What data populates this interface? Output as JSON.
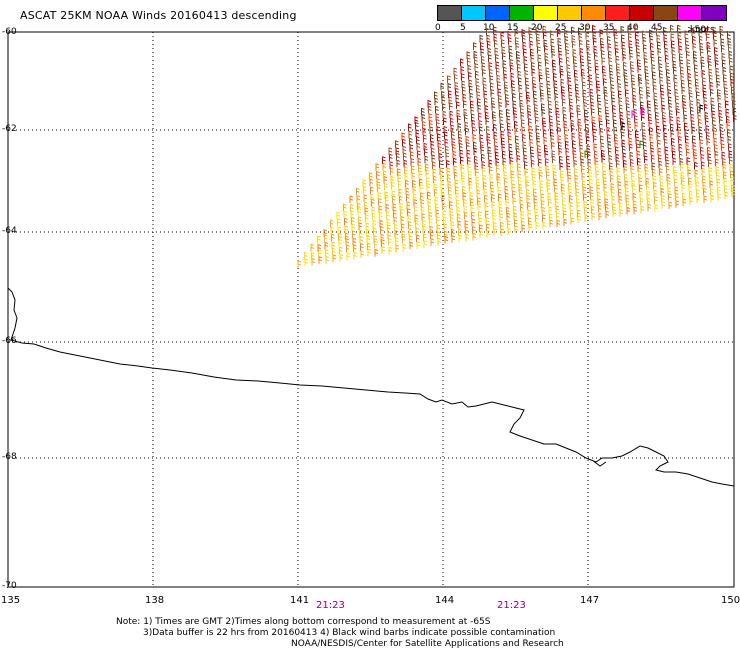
{
  "title": "ASCAT 25KM NOAA Winds 20160413 descending",
  "legend": {
    "colors": [
      "#555555",
      "#00c8ff",
      "#0064ff",
      "#00b400",
      "#ffff00",
      "#ffc800",
      "#ff8c00",
      "#ff1e1e",
      "#c80000",
      "#8b4513",
      "#ff00ff",
      "#8000c0",
      "#4b0082"
    ],
    "labels": [
      "0",
      "5",
      "10",
      "15",
      "20",
      "25",
      "30",
      "35",
      "40",
      "45",
      ">50"
    ],
    "unit": "knots"
  },
  "axes": {
    "latitude_labels": [
      "-60",
      "-62",
      "-64",
      "-66",
      "-68",
      "-70"
    ],
    "longitude_labels": [
      "135",
      "138",
      "141",
      "144",
      "147",
      "150"
    ]
  },
  "times": [
    "21:23",
    "21:23"
  ],
  "notes": {
    "line1": "Note: 1) Times are GMT 2)Times along bottom correspond to measurement at -65S",
    "line2": "3)Data buffer is 22 hrs from 20160413 4) Black wind barbs indicate possible contamination",
    "line3": "NOAA/NESDIS/Center for Satellite Applications and Research"
  }
}
